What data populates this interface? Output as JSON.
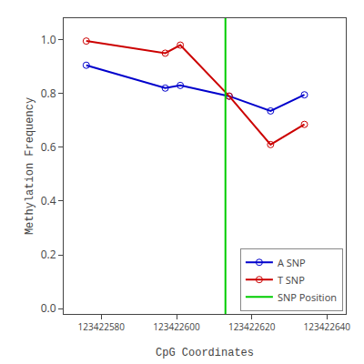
{
  "chart_data": {
    "type": "line",
    "xlabel": "CpG Coordinates",
    "ylabel": "Methylation Frequency",
    "x": [
      123422576,
      123422597,
      123422601,
      123422614,
      123422625,
      123422634
    ],
    "series": [
      {
        "name": "A SNP",
        "color": "#0000CC",
        "marker": "circle-open",
        "values": [
          0.905,
          0.82,
          0.83,
          0.79,
          0.735,
          0.795
        ]
      },
      {
        "name": "T SNP",
        "color": "#CC0000",
        "marker": "circle-open",
        "values": [
          0.995,
          0.95,
          0.98,
          0.79,
          0.61,
          0.685
        ]
      },
      {
        "name": "SNP Position",
        "type": "vline",
        "color": "#00CC00",
        "x": [
          123422613
        ]
      }
    ],
    "xlim": [
      123422570,
      123422645
    ],
    "xticks": [
      123422580,
      123422600,
      123422620,
      123422640
    ],
    "ylim": [
      -0.02,
      1.08
    ],
    "yticks": [
      {
        "value": 0,
        "label": "0.0"
      },
      0.2,
      0.4,
      0.6,
      0.8,
      {
        "value": 1,
        "label": "1.0"
      }
    ],
    "grid": false,
    "legend": "lower right"
  }
}
